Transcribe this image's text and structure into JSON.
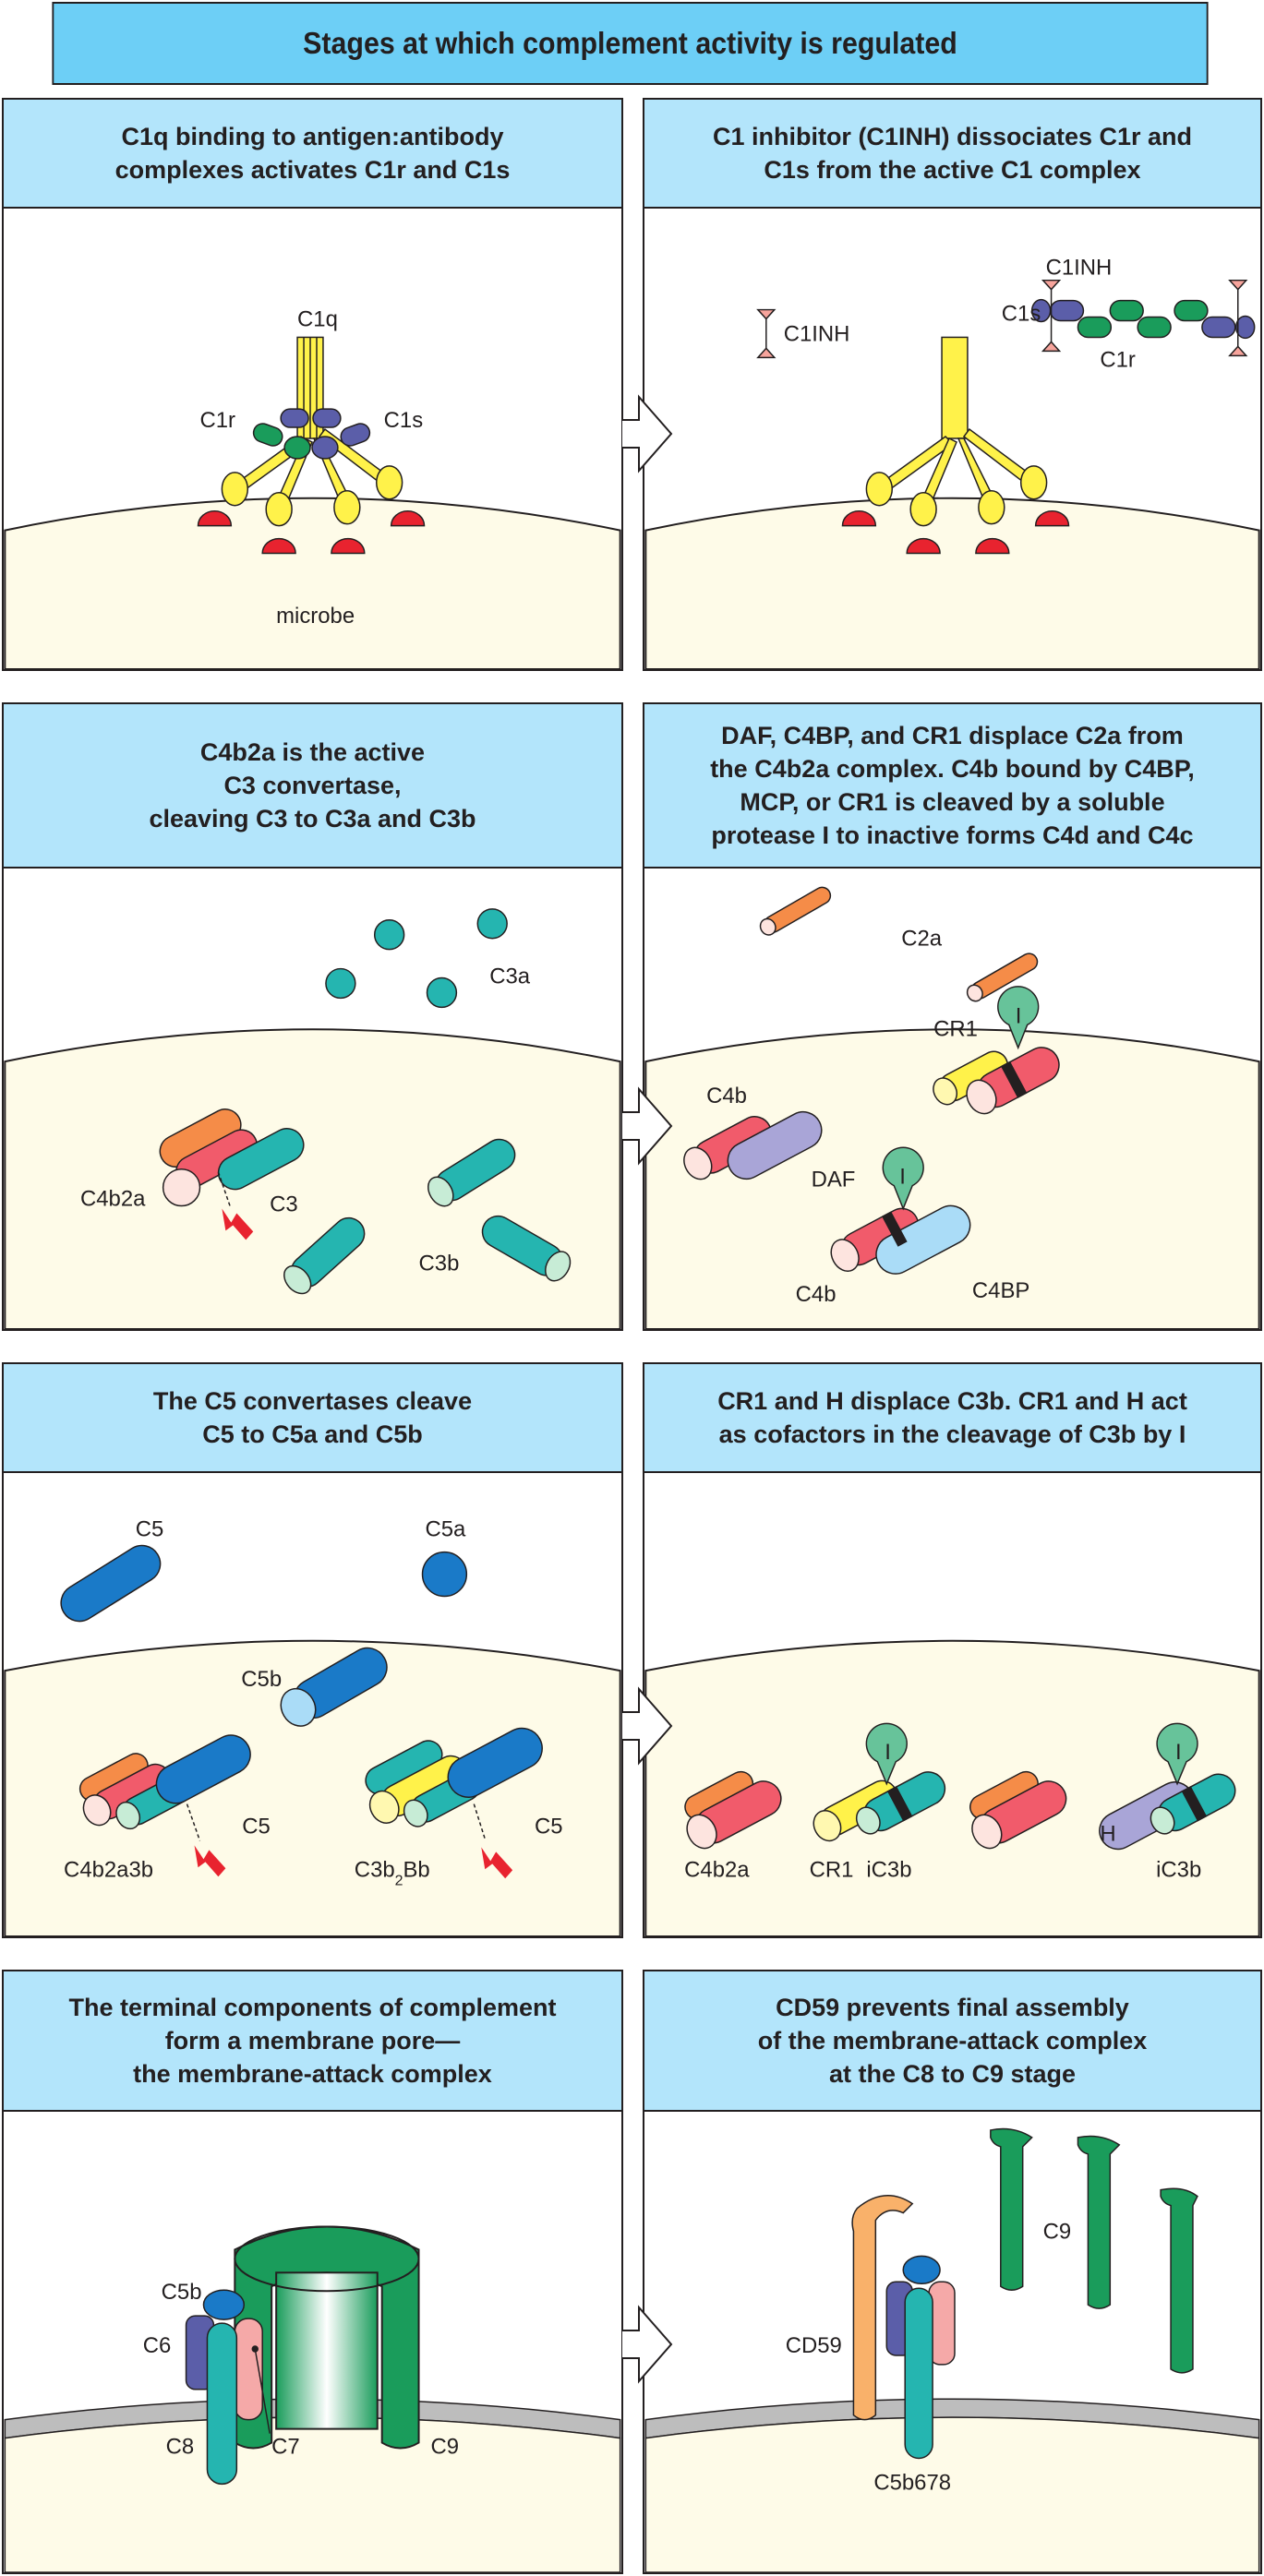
{
  "title": "Stages at which complement activity is regulated",
  "panels": {
    "p1": {
      "heading": "C1q binding to antigen:antibody\ncomplexes activates C1r and C1s",
      "labels": {
        "c1q": "C1q",
        "c1r": "C1r",
        "c1s": "C1s",
        "microbe": "microbe"
      }
    },
    "p2": {
      "heading": "C1 inhibitor (C1INH) dissociates C1r and\nC1s from the active C1 complex",
      "labels": {
        "c1inh_free": "C1INH",
        "c1inh_bound": "C1INH",
        "c1s": "C1s",
        "c1r": "C1r"
      }
    },
    "p3": {
      "heading": "C4b2a is the active\nC3 convertase,\ncleaving C3 to C3a and C3b",
      "labels": {
        "c3a": "C3a",
        "c4b2a": "C4b2a",
        "c3": "C3",
        "c3b": "C3b"
      }
    },
    "p4": {
      "heading": "DAF, C4BP, and CR1 displace C2a from\nthe C4b2a complex. C4b bound by C4BP,\nMCP, or CR1 is cleaved by a soluble\nprotease I to inactive forms C4d and C4c",
      "labels": {
        "c2a": "C2a",
        "cr1": "CR1",
        "i_top": "I",
        "c4b_top": "C4b",
        "daf": "DAF",
        "i_bottom": "I",
        "c4b_bottom": "C4b",
        "c4bp": "C4BP"
      }
    },
    "p5": {
      "heading": "The C5 convertases cleave\nC5 to C5a and C5b",
      "labels": {
        "c5_free": "C5",
        "c5a": "C5a",
        "c5b": "C5b",
        "c5_left": "C5",
        "c4b2a3b": "C4b2a3b",
        "c5_right": "C5",
        "c3b2bb_main": "C3b",
        "c3b2bb_sub": "2",
        "c3b2bb_tail": "Bb"
      }
    },
    "p6": {
      "heading": "CR1 and H displace C3b. CR1 and H act\nas cofactors in the cleavage of C3b by I",
      "labels": {
        "c4b2a": "C4b2a",
        "cr1": "CR1",
        "i_left": "I",
        "ic3b_left": "iC3b",
        "h": "H",
        "i_right": "I",
        "ic3b_right": "iC3b"
      }
    },
    "p7": {
      "heading": "The terminal components of complement\nform a membrane pore—\nthe membrane-attack complex",
      "labels": {
        "c5b": "C5b",
        "c6": "C6",
        "c7": "C7",
        "c8": "C8",
        "c9": "C9"
      }
    },
    "p8": {
      "heading": "CD59 prevents final assembly\nof the membrane-attack complex\nat the C8 to C9 stage",
      "labels": {
        "cd59": "CD59",
        "c9": "C9",
        "c5b678": "C5b678"
      }
    }
  },
  "colors": {
    "title_bg": "#6dcff6",
    "head_bg": "#b3e5fb",
    "membrane": "#fefbe8",
    "yellow": "#fff24a",
    "red": "#e8232f",
    "green": "#1a9c5b",
    "purple": "#5b5ea9",
    "teal": "#25b5b0",
    "orange": "#f58c48",
    "pink": "#f15b6b",
    "lavender": "#a9a5d7",
    "lightblue": "#aadcf7",
    "blue": "#1a7ac8",
    "mint": "#67c39a",
    "tan": "#f9b16a"
  }
}
